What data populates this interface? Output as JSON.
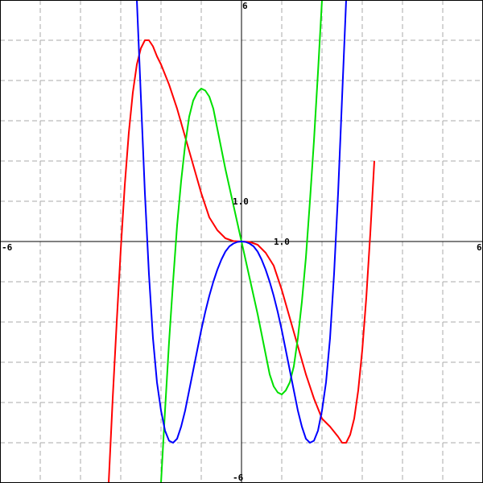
{
  "chart_data": {
    "type": "line",
    "title": "",
    "xlabel": "",
    "ylabel": "",
    "xlim": [
      -6,
      6
    ],
    "ylim": [
      -6,
      6
    ],
    "grid": true,
    "grid_step": 1,
    "labels": {
      "x_min": "-6",
      "x_max": "6",
      "y_max": "6",
      "y_min": "-6",
      "x_unit": "1.0",
      "y_unit": "1.0"
    },
    "series": [
      {
        "color": "#ff0000",
        "x": [
          -3.3,
          -3.2,
          -3.1,
          -3.0,
          -2.9,
          -2.8,
          -2.7,
          -2.6,
          -2.5,
          -2.4,
          -2.3,
          -2.2,
          -2.1,
          -2.0,
          -1.8,
          -1.6,
          -1.4,
          -1.2,
          -1.0,
          -0.8,
          -0.6,
          -0.4,
          -0.2,
          0.0,
          0.2,
          0.4,
          0.6,
          0.8,
          1.0,
          1.2,
          1.4,
          1.6,
          1.8,
          2.0,
          2.2,
          2.4,
          2.5,
          2.6,
          2.7,
          2.8,
          2.9,
          3.0,
          3.1,
          3.2,
          3.3
        ],
        "y": [
          -6.0,
          -3.9,
          -2.0,
          -0.2,
          1.4,
          2.7,
          3.7,
          4.4,
          4.8,
          5.0,
          5.0,
          4.85,
          4.6,
          4.4,
          3.9,
          3.3,
          2.6,
          1.9,
          1.2,
          0.6,
          0.28,
          0.08,
          0.01,
          0.0,
          -0.01,
          -0.08,
          -0.28,
          -0.6,
          -1.2,
          -1.9,
          -2.6,
          -3.3,
          -3.9,
          -4.4,
          -4.6,
          -4.85,
          -5.0,
          -5.0,
          -4.8,
          -4.4,
          -3.7,
          -2.7,
          -1.4,
          0.2,
          2.0
        ]
      },
      {
        "color": "#00e000",
        "x": [
          -2.0,
          -1.9,
          -1.8,
          -1.7,
          -1.6,
          -1.5,
          -1.4,
          -1.3,
          -1.2,
          -1.1,
          -1.0,
          -0.9,
          -0.8,
          -0.7,
          -0.6,
          -0.5,
          -0.4,
          -0.3,
          -0.2,
          -0.1,
          0.0,
          0.1,
          0.2,
          0.3,
          0.4,
          0.5,
          0.6,
          0.7,
          0.8,
          0.9,
          1.0,
          1.1,
          1.2,
          1.3,
          1.4,
          1.5,
          1.6,
          1.7,
          1.8,
          1.9,
          2.0
        ],
        "y": [
          -6.0,
          -4.2,
          -2.5,
          -1.0,
          0.4,
          1.5,
          2.4,
          3.1,
          3.5,
          3.7,
          3.8,
          3.75,
          3.6,
          3.3,
          2.8,
          2.3,
          1.8,
          1.35,
          0.9,
          0.45,
          0.0,
          -0.45,
          -0.9,
          -1.35,
          -1.8,
          -2.3,
          -2.8,
          -3.3,
          -3.6,
          -3.75,
          -3.8,
          -3.7,
          -3.5,
          -3.1,
          -2.4,
          -1.5,
          -0.4,
          1.0,
          2.5,
          4.2,
          6.0
        ]
      },
      {
        "color": "#0000ff",
        "x": [
          -2.6,
          -2.5,
          -2.4,
          -2.3,
          -2.2,
          -2.1,
          -2.0,
          -1.9,
          -1.8,
          -1.7,
          -1.6,
          -1.5,
          -1.4,
          -1.3,
          -1.2,
          -1.1,
          -1.0,
          -0.9,
          -0.8,
          -0.7,
          -0.6,
          -0.5,
          -0.4,
          -0.3,
          -0.2,
          -0.1,
          0.0,
          0.1,
          0.2,
          0.3,
          0.4,
          0.5,
          0.6,
          0.7,
          0.8,
          0.9,
          1.0,
          1.1,
          1.2,
          1.3,
          1.4,
          1.5,
          1.6,
          1.7,
          1.8,
          1.9,
          2.0,
          2.1,
          2.2,
          2.3,
          2.4,
          2.5,
          2.6
        ],
        "y": [
          6.0,
          3.6,
          1.2,
          -0.8,
          -2.4,
          -3.5,
          -4.2,
          -4.7,
          -4.95,
          -5.0,
          -4.9,
          -4.6,
          -4.2,
          -3.7,
          -3.2,
          -2.7,
          -2.2,
          -1.75,
          -1.35,
          -1.0,
          -0.7,
          -0.45,
          -0.25,
          -0.12,
          -0.05,
          -0.01,
          0.0,
          -0.01,
          -0.05,
          -0.12,
          -0.25,
          -0.45,
          -0.7,
          -1.0,
          -1.35,
          -1.75,
          -2.2,
          -2.7,
          -3.2,
          -3.7,
          -4.2,
          -4.6,
          -4.9,
          -5.0,
          -4.95,
          -4.7,
          -4.2,
          -3.5,
          -2.4,
          -0.8,
          1.2,
          3.6,
          6.0
        ]
      }
    ]
  }
}
